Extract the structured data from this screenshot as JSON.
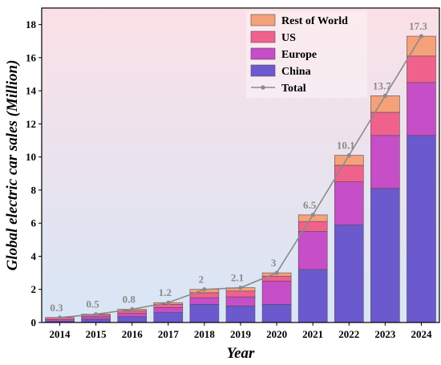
{
  "chart_data": {
    "type": "bar",
    "stacked": true,
    "title": "",
    "xlabel": "Year",
    "ylabel": "Global electric car sales (Million)",
    "ylim": [
      0,
      19
    ],
    "yticks": [
      0,
      2,
      4,
      6,
      8,
      10,
      12,
      14,
      16,
      18
    ],
    "categories": [
      "2014",
      "2015",
      "2016",
      "2017",
      "2018",
      "2019",
      "2020",
      "2021",
      "2022",
      "2023",
      "2024"
    ],
    "series": [
      {
        "name": "China",
        "color": "#6a5acd",
        "values": [
          0.08,
          0.2,
          0.35,
          0.6,
          1.1,
          1.0,
          1.1,
          3.2,
          5.9,
          8.1,
          11.3
        ]
      },
      {
        "name": "Europe",
        "color": "#c64ec6",
        "values": [
          0.1,
          0.15,
          0.2,
          0.3,
          0.4,
          0.55,
          1.4,
          2.3,
          2.6,
          3.2,
          3.2
        ]
      },
      {
        "name": "US",
        "color": "#f0628c",
        "values": [
          0.12,
          0.1,
          0.15,
          0.2,
          0.3,
          0.35,
          0.3,
          0.6,
          1.0,
          1.4,
          1.6
        ]
      },
      {
        "name": "Rest of World",
        "color": "#f5a179",
        "values": [
          0.0,
          0.05,
          0.1,
          0.1,
          0.2,
          0.2,
          0.2,
          0.4,
          0.6,
          1.0,
          1.2
        ]
      }
    ],
    "total": {
      "name": "Total",
      "color": "#8a8a8a",
      "values": [
        0.3,
        0.5,
        0.8,
        1.2,
        2,
        2.1,
        3,
        6.5,
        10.1,
        13.7,
        17.3
      ]
    },
    "legend_position": "top-right",
    "grid": false,
    "background_gradient": [
      "#fbe0e6",
      "#d8e6f6"
    ]
  }
}
